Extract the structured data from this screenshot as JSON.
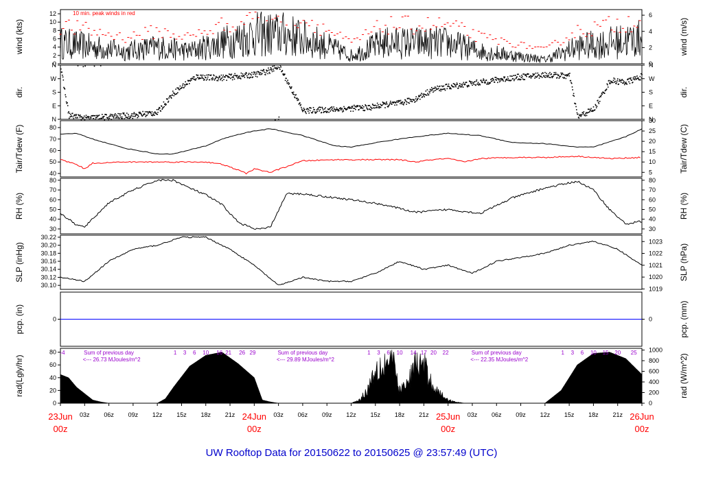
{
  "colors": {
    "tdew": "#ff0000",
    "peak": "#ff0000",
    "pcp": "#0000ff",
    "annot": "#9900cc",
    "title": "#0000cc",
    "date": "#ff0000"
  },
  "chart_data": {
    "type": "line",
    "title": "UW Rooftop Data for 20150622  to  20150625 @ 23:57:49  (UTC)",
    "x_hours": [
      0,
      72
    ],
    "hour_ticks": [
      "00z",
      "03z",
      "06z",
      "09z",
      "12z",
      "15z",
      "18z",
      "21z",
      "24Jun",
      "03z",
      "06z",
      "09z",
      "12z",
      "15z",
      "18z",
      "21z",
      "25Jun",
      "03z",
      "06z",
      "09z",
      "12z",
      "15z",
      "18z",
      "21z",
      "26Jun"
    ],
    "date_labels": [
      {
        "hour": 0,
        "line1": "23Jun",
        "line2": "00z"
      },
      {
        "hour": 24,
        "line1": "24Jun",
        "line2": "00z"
      },
      {
        "hour": 48,
        "line1": "25Jun",
        "line2": "00z"
      },
      {
        "hour": 72,
        "line1": "26Jun",
        "line2": "00z"
      }
    ],
    "panels": {
      "wind": {
        "ylabel_left": "wind (kts)",
        "ylabel_right": "wind (m/s)",
        "ylim": [
          0,
          13
        ],
        "left_ticks": [
          "0",
          "2",
          "4",
          "6",
          "8",
          "10",
          "12"
        ],
        "right_ticks": [
          "0",
          "2",
          "4",
          "6"
        ],
        "annotation": "10 min. peak winds in red",
        "series": [
          {
            "name": "wind",
            "x": [
              0,
              4,
              8,
              12,
              16,
              20,
              24,
              28,
              32,
              36,
              40,
              44,
              48,
              52,
              56,
              60,
              64,
              68,
              72
            ],
            "y": [
              5,
              4,
              3,
              4,
              3,
              5,
              7,
              7,
              5,
              2,
              5,
              5,
              5,
              3,
              2,
              1,
              4,
              5,
              6
            ]
          }
        ]
      },
      "dir": {
        "ylabel_left": "dir.",
        "ylabel_right": "dir.",
        "left_ticks": [
          "N",
          "E",
          "S",
          "W",
          "N"
        ],
        "right_ticks": [
          "N",
          "E",
          "S",
          "W",
          "N"
        ],
        "series": [
          {
            "name": "dir",
            "x": [
              0,
              1,
              3,
              6,
              9,
              12,
              13,
              14,
              15,
              16,
              17,
              18,
              20,
              24,
              26,
              27,
              30,
              34,
              37,
              38,
              40,
              42,
              44,
              46,
              48,
              52,
              56,
              60,
              63,
              64,
              66,
              68,
              70,
              72
            ],
            "y": [
              340,
              30,
              10,
              20,
              30,
              50,
              120,
              180,
              220,
              260,
              290,
              280,
              280,
              300,
              330,
              360,
              60,
              70,
              80,
              80,
              100,
              110,
              140,
              200,
              220,
              250,
              280,
              300,
              290,
              20,
              70,
              260,
              250,
              290
            ]
          }
        ]
      },
      "temp": {
        "ylabel_left": "Tair/Tdew (F)",
        "ylabel_right": "Tair/Tdew (C)",
        "ylim": [
          37,
          86
        ],
        "left_ticks": [
          "40",
          "50",
          "60",
          "70",
          "80"
        ],
        "right_ticks": [
          "5",
          "10",
          "15",
          "20",
          "25",
          "30"
        ],
        "series": [
          {
            "name": "Tair",
            "x": [
              0,
              2,
              4,
              8,
              12,
              14,
              18,
              20,
              22,
              24,
              26,
              30,
              34,
              36,
              40,
              44,
              48,
              52,
              56,
              60,
              64,
              66,
              70,
              72
            ],
            "y": [
              74,
              75,
              70,
              62,
              57,
              57,
              64,
              70,
              74,
              77,
              79,
              73,
              64,
              63,
              68,
              72,
              75,
              73,
              67,
              66,
              63,
              63,
              72,
              79
            ]
          },
          {
            "name": "Tdew",
            "x": [
              0,
              2,
              3,
              4,
              8,
              12,
              16,
              18,
              20,
              22,
              23,
              24,
              26,
              28,
              30,
              34,
              38,
              42,
              44,
              46,
              48,
              50,
              52,
              56,
              60,
              64,
              68,
              72
            ],
            "y": [
              52,
              48,
              44,
              49,
              50,
              50,
              50,
              50,
              48,
              43,
              40,
              44,
              41,
              46,
              51,
              52,
              52,
              52,
              50,
              52,
              53,
              50,
              53,
              54,
              54,
              55,
              53,
              54
            ]
          }
        ]
      },
      "rh": {
        "ylabel_left": "RH (%)",
        "ylabel_right": "RH (%)",
        "ylim": [
          25,
          82
        ],
        "left_ticks": [
          "30",
          "40",
          "50",
          "60",
          "70",
          "80"
        ],
        "right_ticks": [
          "30",
          "40",
          "50",
          "60",
          "70",
          "80"
        ],
        "series": [
          {
            "name": "RH",
            "x": [
              0,
              2,
              3,
              6,
              9,
              12,
              14,
              16,
              18,
              20,
              22,
              24,
              25,
              26,
              28,
              30,
              32,
              36,
              40,
              44,
              48,
              52,
              56,
              60,
              64,
              66,
              68,
              70,
              72
            ],
            "y": [
              46,
              34,
              32,
              57,
              70,
              80,
              80,
              72,
              65,
              55,
              37,
              30,
              30,
              32,
              66,
              66,
              64,
              60,
              55,
              47,
              50,
              46,
              62,
              72,
              79,
              70,
              50,
              35,
              38
            ]
          }
        ]
      },
      "slp": {
        "ylabel_left": "SLP (inHg)",
        "ylabel_right": "SLP (hPa)",
        "ylim": [
          30.09,
          30.225
        ],
        "left_ticks": [
          "30.10",
          "30.12",
          "30.14",
          "30.16",
          "30.18",
          "30.20",
          "30.22"
        ],
        "right_ticks": [
          "1019",
          "1020",
          "1021",
          "1022",
          "1023"
        ],
        "series": [
          {
            "name": "SLP",
            "x": [
              0,
              3,
              6,
              9,
              12,
              15,
              18,
              21,
              24,
              27,
              30,
              33,
              36,
              39,
              42,
              45,
              48,
              51,
              54,
              57,
              60,
              63,
              66,
              69,
              72
            ],
            "y": [
              30.12,
              30.11,
              30.16,
              30.19,
              30.2,
              30.22,
              30.22,
              30.19,
              30.15,
              30.1,
              30.12,
              30.11,
              30.11,
              30.13,
              30.16,
              30.14,
              30.15,
              30.13,
              30.16,
              30.17,
              30.18,
              30.2,
              30.21,
              30.19,
              30.15
            ]
          }
        ]
      },
      "pcp": {
        "ylabel_left": "pcp. (in)",
        "ylabel_right": "pcp. (mm)",
        "left_ticks": [
          "0"
        ],
        "right_ticks": [
          "0"
        ],
        "series": [
          {
            "name": "pcp",
            "x": [
              0,
              72
            ],
            "y": [
              0,
              0
            ]
          }
        ]
      },
      "rad": {
        "ylabel_left": "rad(Lgly/hr)",
        "ylabel_right": "rad (W/m^2)",
        "ylim": [
          0,
          86
        ],
        "left_ticks": [
          "0",
          "20",
          "40",
          "60",
          "80"
        ],
        "right_ticks": [
          "0",
          "200",
          "400",
          "600",
          "800",
          "1000"
        ],
        "series": [
          {
            "name": "rad",
            "x": [
              0,
              1,
              2,
              4,
              5,
              6,
              12,
              13,
              14,
              16,
              18,
              20,
              22,
              24,
              25,
              26,
              27,
              36,
              37,
              38,
              39,
              40,
              41,
              42,
              43,
              44,
              45,
              46,
              47,
              48,
              49,
              50,
              51,
              60,
              62,
              64,
              66,
              68,
              70,
              72
            ],
            "y": [
              45,
              40,
              25,
              5,
              2,
              0,
              0,
              7,
              25,
              58,
              75,
              80,
              62,
              40,
              5,
              2,
              0,
              0,
              5,
              20,
              55,
              60,
              70,
              20,
              30,
              62,
              58,
              30,
              15,
              5,
              2,
              0,
              0,
              0,
              20,
              60,
              78,
              80,
              70,
              45
            ]
          }
        ],
        "day_labels": [
          {
            "hour_center": 6,
            "sum_title": "Sum of previous day",
            "sum_value": "<--- 26.73 MJoules/m^2"
          },
          {
            "hour_center": 30,
            "sum_title": "Sum of previous day",
            "sum_value": "<--- 29.89 MJoules/m^2"
          },
          {
            "hour_center": 54,
            "sum_title": "Sum of previous day",
            "sum_value": "<--- 22.35 MJoules/m^2"
          }
        ],
        "hour_markers": [
          {
            "hour": 0,
            "label": "-4"
          },
          {
            "hour": 14.2,
            "label": "1"
          },
          {
            "hour": 15.4,
            "label": "3"
          },
          {
            "hour": 16.6,
            "label": "6"
          },
          {
            "hour": 18,
            "label": "10"
          },
          {
            "hour": 19.7,
            "label": "16"
          },
          {
            "hour": 20.8,
            "label": "21"
          },
          {
            "hour": 22.5,
            "label": "26"
          },
          {
            "hour": 23.8,
            "label": "29"
          },
          {
            "hour": 38.2,
            "label": "1"
          },
          {
            "hour": 39.4,
            "label": "3"
          },
          {
            "hour": 40.6,
            "label": "6"
          },
          {
            "hour": 42,
            "label": "10"
          },
          {
            "hour": 43.7,
            "label": "14"
          },
          {
            "hour": 45,
            "label": "17"
          },
          {
            "hour": 46.2,
            "label": "20"
          },
          {
            "hour": 47.7,
            "label": "22"
          },
          {
            "hour": 62.2,
            "label": "1"
          },
          {
            "hour": 63.4,
            "label": "3"
          },
          {
            "hour": 64.6,
            "label": "6"
          },
          {
            "hour": 66,
            "label": "10"
          },
          {
            "hour": 67.5,
            "label": "15"
          },
          {
            "hour": 69,
            "label": "20"
          },
          {
            "hour": 71,
            "label": "25"
          }
        ]
      }
    }
  }
}
